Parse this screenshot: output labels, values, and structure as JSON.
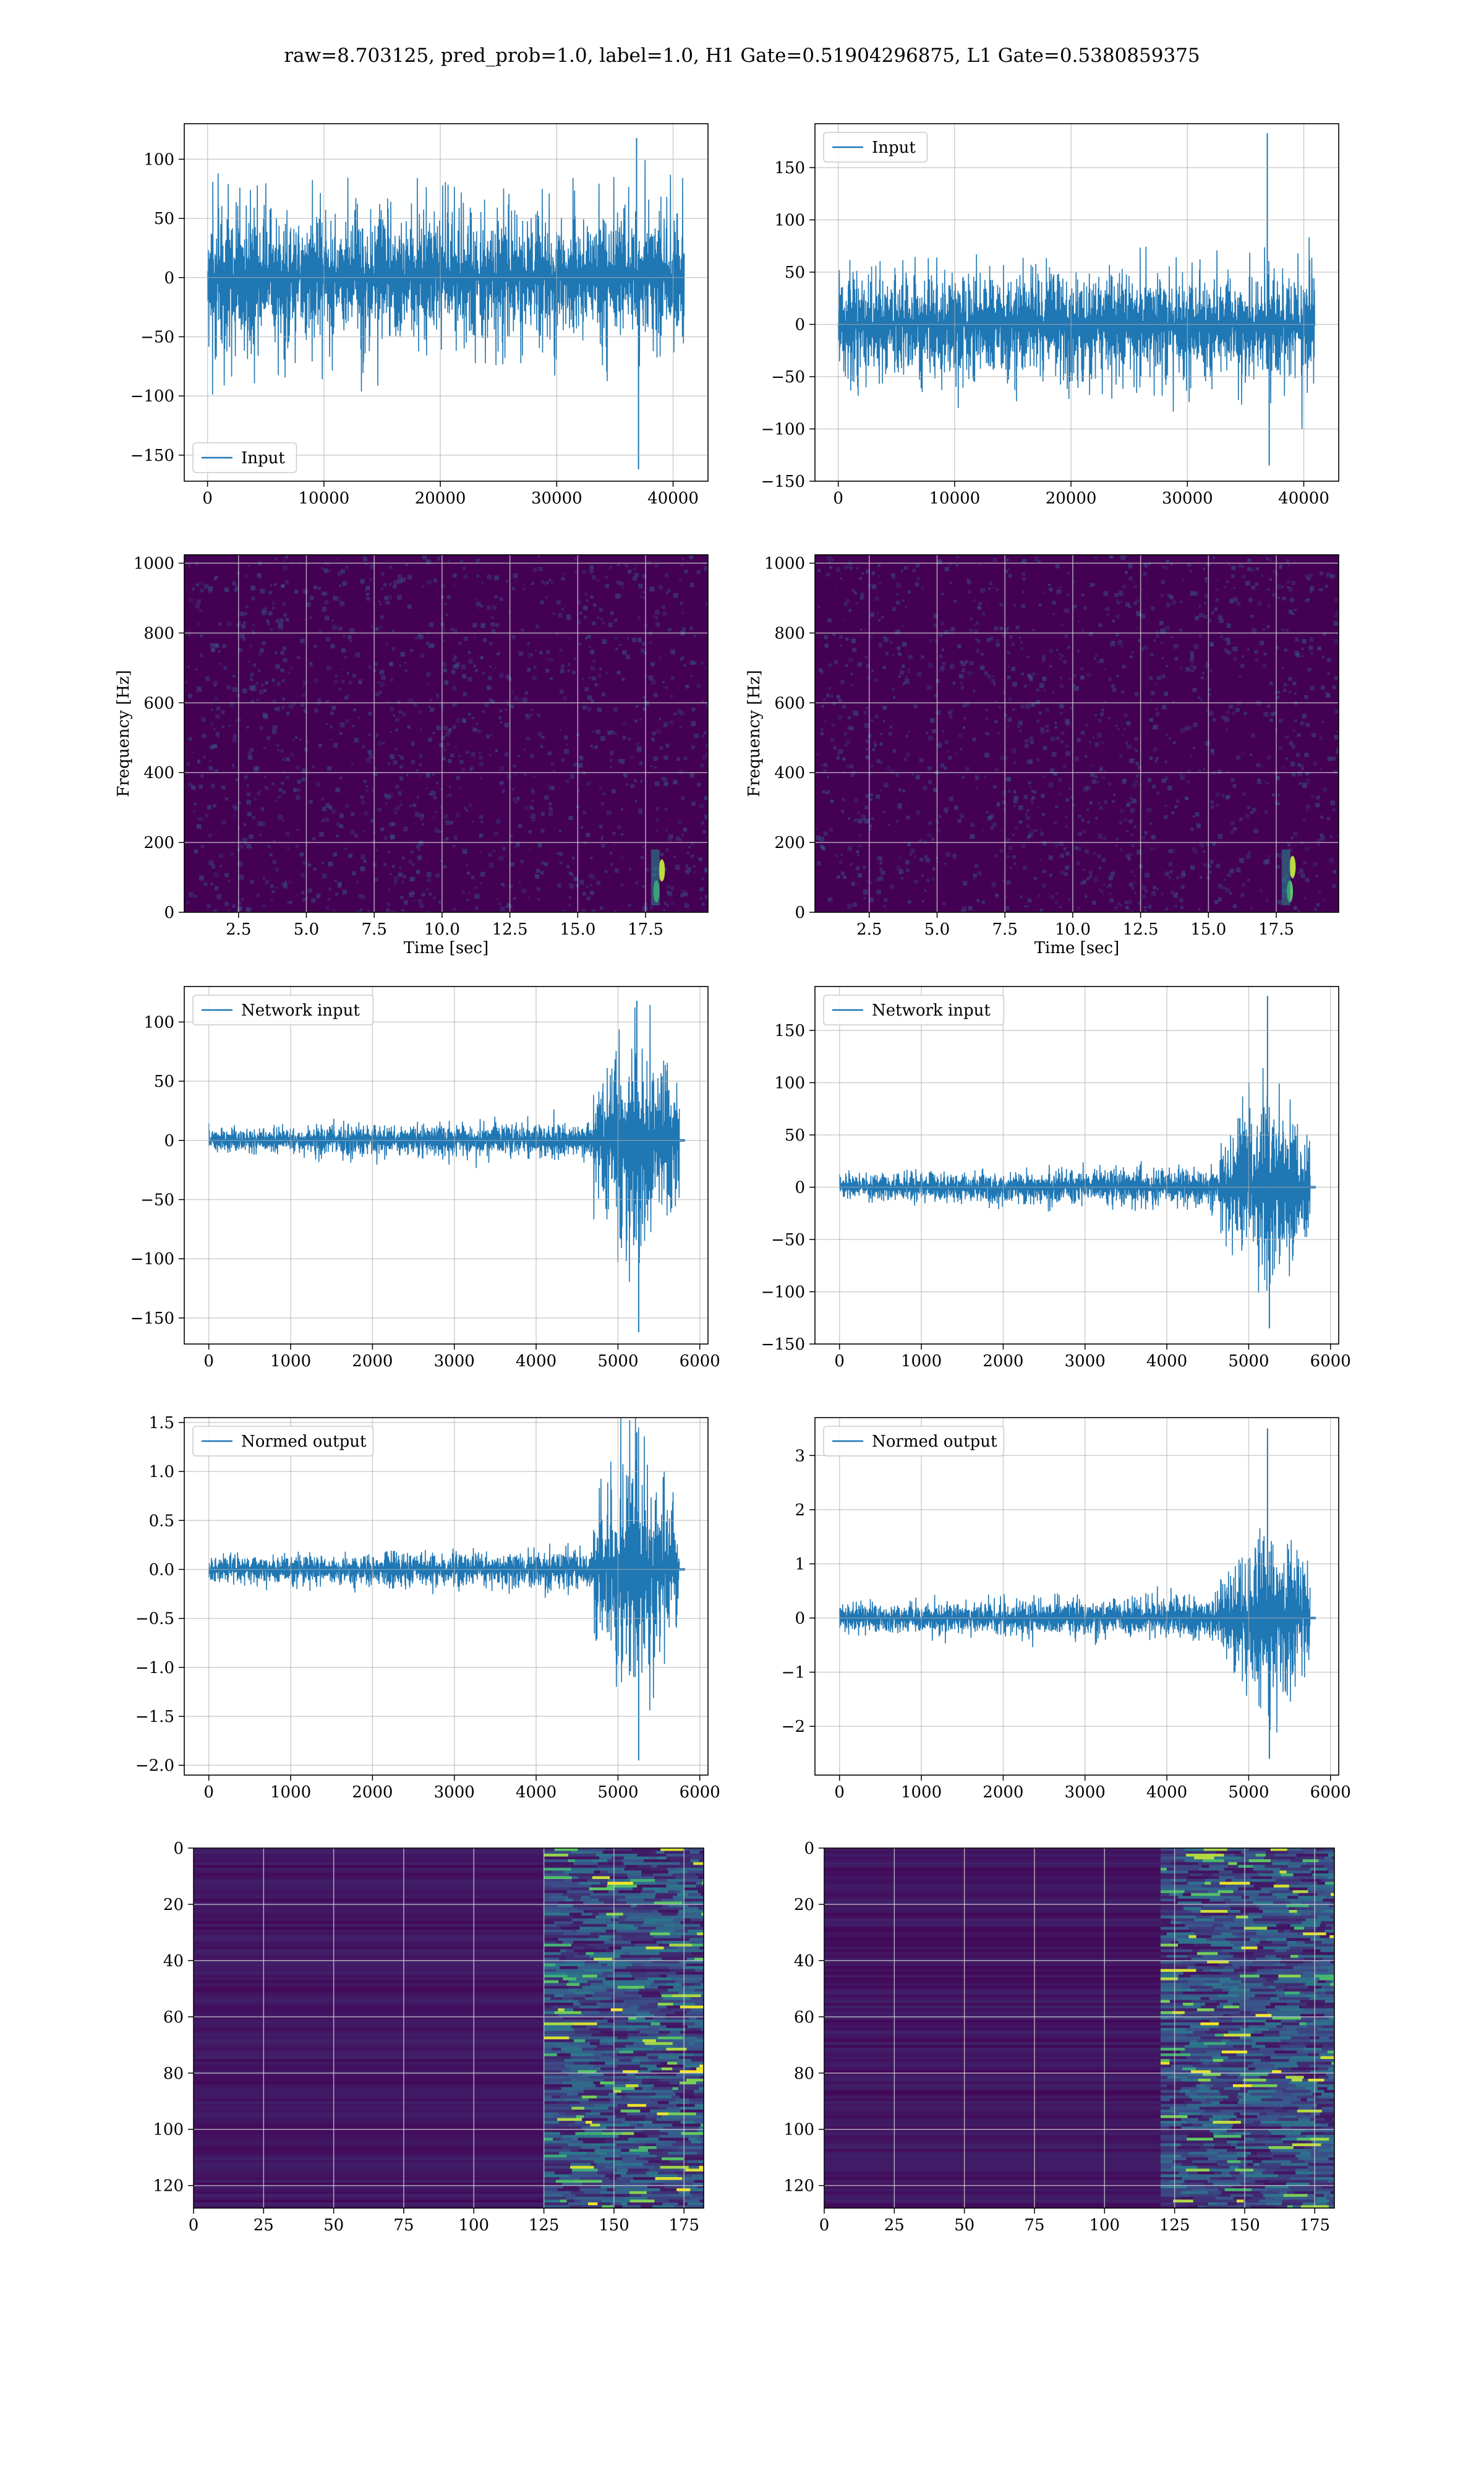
{
  "figure": {
    "title": "raw=8.703125, pred_prob=1.0, label=1.0, H1 Gate=0.51904296875, L1 Gate=0.5380859375"
  },
  "colors": {
    "line": "#1f77b4",
    "grid": "#b0b0b0",
    "viridis_dark": "#440154",
    "viridis_mid": "#21918c",
    "viridis_light": "#5ec962",
    "viridis_bright": "#fde725"
  },
  "chart_data": [
    {
      "id": "h1-input",
      "type": "line",
      "title": "",
      "xlabel": "",
      "ylabel": "",
      "xlim": [
        -2000,
        43000
      ],
      "ylim": [
        -172,
        130
      ],
      "xticks": [
        0,
        10000,
        20000,
        30000,
        40000
      ],
      "xtick_labels": [
        "0",
        "10000",
        "20000",
        "30000",
        "40000"
      ],
      "yticks": [
        -150,
        -100,
        -50,
        0,
        50,
        100
      ],
      "ytick_labels": [
        "−150",
        "−100",
        "−50",
        "0",
        "50",
        "100"
      ],
      "grid": true,
      "legend": {
        "loc": "lower left",
        "entries": [
          "Input"
        ]
      },
      "series": [
        {
          "name": "Input",
          "x_range": [
            0,
            40960
          ],
          "envelope": [
            -70,
            75
          ],
          "peak_max": 118,
          "peak_min": -162
        }
      ]
    },
    {
      "id": "l1-input",
      "type": "line",
      "title": "",
      "xlabel": "",
      "ylabel": "",
      "xlim": [
        -2000,
        43000
      ],
      "ylim": [
        -150,
        192
      ],
      "xticks": [
        0,
        10000,
        20000,
        30000,
        40000
      ],
      "xtick_labels": [
        "0",
        "10000",
        "20000",
        "30000",
        "40000"
      ],
      "yticks": [
        -150,
        -100,
        -50,
        0,
        50,
        100,
        150
      ],
      "ytick_labels": [
        "−150",
        "−100",
        "−50",
        "0",
        "50",
        "100",
        "150"
      ],
      "grid": true,
      "legend": {
        "loc": "upper left",
        "entries": [
          "Input"
        ]
      },
      "series": [
        {
          "name": "Input",
          "x_range": [
            0,
            40960
          ],
          "envelope": [
            -65,
            70
          ],
          "peak_max": 183,
          "peak_min": -135
        }
      ]
    },
    {
      "id": "h1-spectrogram",
      "type": "heatmap",
      "title": "",
      "xlabel": "Time [sec]",
      "ylabel": "Frequency [Hz]",
      "xlim": [
        0.5,
        19.8
      ],
      "ylim": [
        0,
        1024
      ],
      "xticks": [
        2.5,
        5,
        7.5,
        10,
        12.5,
        15,
        17.5
      ],
      "xtick_labels": [
        "2.5",
        "5.0",
        "7.5",
        "10.0",
        "12.5",
        "15.0",
        "17.5"
      ],
      "yticks": [
        0,
        200,
        400,
        600,
        800,
        1000
      ],
      "ytick_labels": [
        "0",
        "200",
        "400",
        "600",
        "800",
        "1000"
      ],
      "grid": true,
      "colormap": "viridis",
      "bright_spots": [
        {
          "t": 17.9,
          "f": 60
        },
        {
          "t": 18.1,
          "f": 120
        }
      ]
    },
    {
      "id": "l1-spectrogram",
      "type": "heatmap",
      "title": "",
      "xlabel": "Time [sec]",
      "ylabel": "Frequency [Hz]",
      "xlim": [
        0.5,
        19.8
      ],
      "ylim": [
        0,
        1024
      ],
      "xticks": [
        2.5,
        5,
        7.5,
        10,
        12.5,
        15,
        17.5
      ],
      "xtick_labels": [
        "2.5",
        "5.0",
        "7.5",
        "10.0",
        "12.5",
        "15.0",
        "17.5"
      ],
      "yticks": [
        0,
        200,
        400,
        600,
        800,
        1000
      ],
      "ytick_labels": [
        "0",
        "200",
        "400",
        "600",
        "800",
        "1000"
      ],
      "grid": true,
      "colormap": "viridis",
      "bright_spots": [
        {
          "t": 18.0,
          "f": 60
        },
        {
          "t": 18.1,
          "f": 130
        }
      ]
    },
    {
      "id": "h1-network-input",
      "type": "line",
      "title": "",
      "xlabel": "",
      "ylabel": "",
      "xlim": [
        -300,
        6100
      ],
      "ylim": [
        -172,
        130
      ],
      "xticks": [
        0,
        1000,
        2000,
        3000,
        4000,
        5000,
        6000
      ],
      "xtick_labels": [
        "0",
        "1000",
        "2000",
        "3000",
        "4000",
        "5000",
        "6000"
      ],
      "yticks": [
        -150,
        -100,
        -50,
        0,
        50,
        100
      ],
      "ytick_labels": [
        "−150",
        "−100",
        "−50",
        "0",
        "50",
        "100"
      ],
      "grid": true,
      "legend": {
        "loc": "upper left",
        "entries": [
          "Network input"
        ]
      },
      "series": [
        {
          "name": "Network input",
          "x_range": [
            0,
            5750
          ],
          "base_amp": 10,
          "burst_start": 4700,
          "burst_amp": 75,
          "peak_max": 118,
          "peak_min": -162,
          "peak_x": 5230,
          "tail_x": 5820
        }
      ]
    },
    {
      "id": "l1-network-input",
      "type": "line",
      "title": "",
      "xlabel": "",
      "ylabel": "",
      "xlim": [
        -300,
        6100
      ],
      "ylim": [
        -150,
        192
      ],
      "xticks": [
        0,
        1000,
        2000,
        3000,
        4000,
        5000,
        6000
      ],
      "xtick_labels": [
        "0",
        "1000",
        "2000",
        "3000",
        "4000",
        "5000",
        "6000"
      ],
      "yticks": [
        -150,
        -100,
        -50,
        0,
        50,
        100,
        150
      ],
      "ytick_labels": [
        "−150",
        "−100",
        "−50",
        "0",
        "50",
        "100",
        "150"
      ],
      "grid": true,
      "legend": {
        "loc": "upper left",
        "entries": [
          "Network input"
        ]
      },
      "series": [
        {
          "name": "Network input",
          "x_range": [
            0,
            5750
          ],
          "base_amp": 12,
          "burst_start": 4650,
          "burst_amp": 70,
          "peak_max": 183,
          "peak_min": -135,
          "peak_x": 5230,
          "tail_x": 5820
        }
      ]
    },
    {
      "id": "h1-normed-output",
      "type": "line",
      "title": "",
      "xlabel": "",
      "ylabel": "",
      "xlim": [
        -300,
        6100
      ],
      "ylim": [
        -2.1,
        1.55
      ],
      "xticks": [
        0,
        1000,
        2000,
        3000,
        4000,
        5000,
        6000
      ],
      "xtick_labels": [
        "0",
        "1000",
        "2000",
        "3000",
        "4000",
        "5000",
        "6000"
      ],
      "yticks": [
        -2.0,
        -1.5,
        -1.0,
        -0.5,
        0.0,
        0.5,
        1.0,
        1.5
      ],
      "ytick_labels": [
        "−2.0",
        "−1.5",
        "−1.0",
        "−0.5",
        "0.0",
        "0.5",
        "1.0",
        "1.5"
      ],
      "grid": true,
      "legend": {
        "loc": "upper left",
        "entries": [
          "Normed output"
        ]
      },
      "series": [
        {
          "name": "Normed output",
          "x_range": [
            0,
            5750
          ],
          "base_amp": 0.13,
          "burst_start": 4700,
          "burst_amp": 0.9,
          "peak_max": 1.4,
          "peak_min": -1.95,
          "peak_x": 5230,
          "tail_x": 5820
        }
      ]
    },
    {
      "id": "l1-normed-output",
      "type": "line",
      "title": "",
      "xlabel": "",
      "ylabel": "",
      "xlim": [
        -300,
        6100
      ],
      "ylim": [
        -2.9,
        3.7
      ],
      "xticks": [
        0,
        1000,
        2000,
        3000,
        4000,
        5000,
        6000
      ],
      "xtick_labels": [
        "0",
        "1000",
        "2000",
        "3000",
        "4000",
        "5000",
        "6000"
      ],
      "yticks": [
        -2,
        -1,
        0,
        1,
        2,
        3
      ],
      "ytick_labels": [
        "−2",
        "−1",
        "0",
        "1",
        "2",
        "3"
      ],
      "grid": true,
      "legend": {
        "loc": "upper left",
        "entries": [
          "Normed output"
        ]
      },
      "series": [
        {
          "name": "Normed output",
          "x_range": [
            0,
            5750
          ],
          "base_amp": 0.25,
          "burst_start": 4650,
          "burst_amp": 1.3,
          "peak_max": 3.5,
          "peak_min": -2.6,
          "peak_x": 5230,
          "tail_x": 5820
        }
      ]
    },
    {
      "id": "h1-feature-map",
      "type": "heatmap",
      "title": "",
      "xlabel": "",
      "ylabel": "",
      "xlim": [
        0,
        182
      ],
      "ylim": [
        128,
        0
      ],
      "xticks": [
        0,
        25,
        50,
        75,
        100,
        125,
        150,
        175
      ],
      "xtick_labels": [
        "0",
        "25",
        "50",
        "75",
        "100",
        "125",
        "150",
        "175"
      ],
      "yticks": [
        0,
        20,
        40,
        60,
        80,
        100,
        120
      ],
      "ytick_labels": [
        "0",
        "20",
        "40",
        "60",
        "80",
        "100",
        "120"
      ],
      "grid": true,
      "colormap": "viridis",
      "active_from_col": 125
    },
    {
      "id": "l1-feature-map",
      "type": "heatmap",
      "title": "",
      "xlabel": "",
      "ylabel": "",
      "xlim": [
        0,
        182
      ],
      "ylim": [
        128,
        0
      ],
      "xticks": [
        0,
        25,
        50,
        75,
        100,
        125,
        150,
        175
      ],
      "xtick_labels": [
        "0",
        "25",
        "50",
        "75",
        "100",
        "125",
        "150",
        "175"
      ],
      "yticks": [
        0,
        20,
        40,
        60,
        80,
        100,
        120
      ],
      "ytick_labels": [
        "0",
        "20",
        "40",
        "60",
        "80",
        "100",
        "120"
      ],
      "grid": true,
      "colormap": "viridis",
      "active_from_col": 120
    }
  ]
}
